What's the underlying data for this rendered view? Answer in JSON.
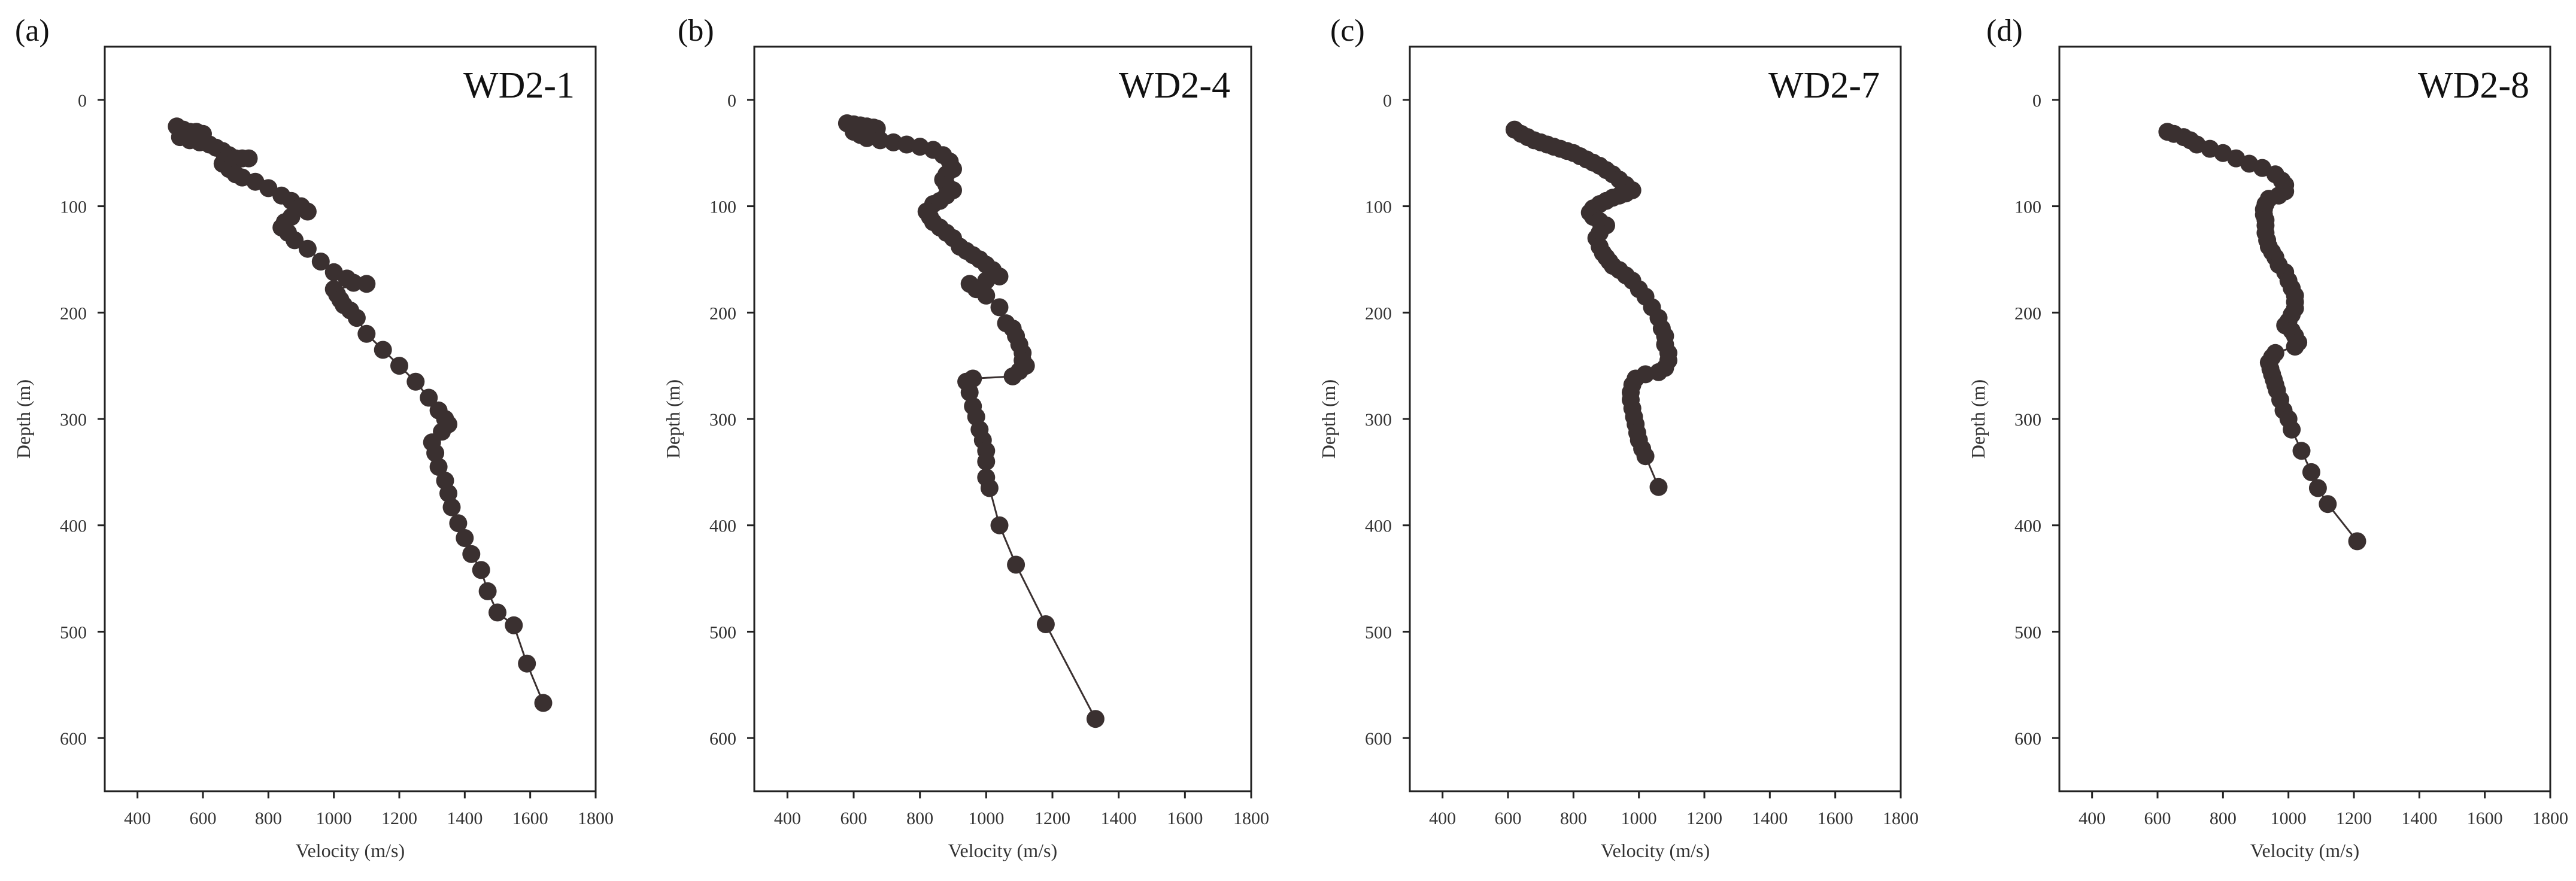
{
  "colors": {
    "marker": "#3a3030",
    "axis": "#222222",
    "text": "#333333"
  },
  "chart_data": [
    {
      "type": "scatter",
      "panel_label": "(a)",
      "title": "WD2-1",
      "xlabel": "Velocity (m/s)",
      "ylabel": "Depth (m)",
      "xlim": [
        300,
        1800
      ],
      "ylim": [
        650,
        -50
      ],
      "y_inverted": true,
      "xticks": [
        "400",
        "600",
        "800",
        "1000",
        "1200",
        "1400",
        "1600",
        "1800"
      ],
      "yticks": [
        "0",
        "100",
        "200",
        "300",
        "400",
        "500",
        "600"
      ],
      "series": [
        {
          "name": "WD2-1",
          "x": [
            520,
            540,
            560,
            580,
            600,
            530,
            560,
            590,
            620,
            640,
            660,
            680,
            700,
            720,
            740,
            660,
            680,
            700,
            720,
            760,
            800,
            840,
            870,
            900,
            920,
            870,
            850,
            840,
            860,
            880,
            920,
            960,
            1000,
            1040,
            1060,
            1100,
            1000,
            1010,
            1020,
            1030,
            1050,
            1070,
            1100,
            1150,
            1200,
            1250,
            1290,
            1320,
            1340,
            1350,
            1330,
            1300,
            1310,
            1320,
            1340,
            1350,
            1360,
            1380,
            1400,
            1420,
            1450,
            1470,
            1500,
            1550,
            1590,
            1640
          ],
          "y": [
            25,
            28,
            30,
            30,
            32,
            35,
            38,
            40,
            42,
            45,
            48,
            52,
            55,
            55,
            55,
            60,
            65,
            70,
            73,
            77,
            83,
            90,
            95,
            100,
            105,
            110,
            115,
            120,
            125,
            132,
            140,
            152,
            162,
            168,
            172,
            173,
            178,
            183,
            188,
            193,
            198,
            205,
            220,
            235,
            250,
            265,
            280,
            292,
            300,
            305,
            312,
            322,
            332,
            345,
            358,
            370,
            383,
            398,
            412,
            427,
            442,
            462,
            482,
            494,
            530,
            567
          ]
        }
      ]
    },
    {
      "type": "scatter",
      "panel_label": "(b)",
      "title": "WD2-4",
      "xlabel": "Velocity (m/s)",
      "ylabel": "Depth (m)",
      "xlim": [
        300,
        1800
      ],
      "ylim": [
        650,
        -50
      ],
      "y_inverted": true,
      "xticks": [
        "400",
        "600",
        "800",
        "1000",
        "1200",
        "1400",
        "1600",
        "1800"
      ],
      "yticks": [
        "0",
        "100",
        "200",
        "300",
        "400",
        "500",
        "600"
      ],
      "series": [
        {
          "name": "WD2-4",
          "x": [
            580,
            600,
            620,
            640,
            660,
            670,
            600,
            620,
            640,
            680,
            720,
            760,
            800,
            840,
            870,
            890,
            900,
            880,
            870,
            880,
            900,
            880,
            860,
            840,
            820,
            830,
            840,
            860,
            880,
            900,
            920,
            940,
            960,
            980,
            1000,
            1020,
            1040,
            1000,
            950,
            970,
            1000,
            1040,
            1060,
            1080,
            1090,
            1100,
            1110,
            1110,
            1120,
            1100,
            1080,
            960,
            940,
            950,
            960,
            970,
            980,
            990,
            1000,
            1000,
            1000,
            1010,
            1040,
            1090,
            1180,
            1330
          ],
          "y": [
            22,
            23,
            24,
            25,
            26,
            27,
            30,
            33,
            36,
            38,
            40,
            42,
            44,
            47,
            52,
            58,
            65,
            70,
            75,
            80,
            85,
            90,
            95,
            98,
            105,
            110,
            115,
            120,
            125,
            130,
            138,
            142,
            146,
            150,
            155,
            160,
            166,
            170,
            173,
            178,
            184,
            195,
            210,
            215,
            222,
            230,
            238,
            245,
            250,
            255,
            260,
            262,
            265,
            275,
            288,
            298,
            310,
            320,
            330,
            340,
            355,
            365,
            400,
            437,
            493,
            582
          ]
        }
      ]
    },
    {
      "type": "scatter",
      "panel_label": "(c)",
      "title": "WD2-7",
      "xlabel": "Velocity (m/s)",
      "ylabel": "Depth (m)",
      "xlim": [
        300,
        1800
      ],
      "ylim": [
        650,
        -50
      ],
      "y_inverted": true,
      "xticks": [
        "400",
        "600",
        "800",
        "1000",
        "1200",
        "1400",
        "1600",
        "1800"
      ],
      "yticks": [
        "0",
        "100",
        "200",
        "300",
        "400",
        "500",
        "600"
      ],
      "series": [
        {
          "name": "WD2-7",
          "x": [
            620,
            640,
            660,
            680,
            700,
            720,
            740,
            760,
            780,
            800,
            820,
            840,
            860,
            880,
            900,
            920,
            940,
            960,
            980,
            960,
            940,
            920,
            900,
            880,
            860,
            850,
            860,
            880,
            900,
            880,
            870,
            880,
            890,
            900,
            910,
            920,
            940,
            960,
            980,
            1000,
            1020,
            1040,
            1060,
            1070,
            1080,
            1080,
            1090,
            1090,
            1080,
            1060,
            1020,
            990,
            980,
            975,
            975,
            980,
            985,
            990,
            995,
            1000,
            1010,
            1020,
            1060
          ],
          "y": [
            28,
            32,
            35,
            38,
            40,
            42,
            44,
            46,
            48,
            50,
            53,
            56,
            59,
            62,
            66,
            70,
            75,
            80,
            85,
            88,
            90,
            92,
            95,
            98,
            102,
            106,
            110,
            114,
            118,
            125,
            130,
            138,
            144,
            148,
            152,
            156,
            160,
            165,
            170,
            178,
            185,
            195,
            205,
            215,
            222,
            230,
            238,
            245,
            252,
            256,
            258,
            262,
            268,
            275,
            282,
            290,
            298,
            305,
            313,
            320,
            328,
            335,
            364
          ]
        }
      ]
    },
    {
      "type": "scatter",
      "panel_label": "(d)",
      "title": "WD2-8",
      "xlabel": "Velocity (m/s)",
      "ylabel": "Depth (m)",
      "xlim": [
        300,
        1800
      ],
      "ylim": [
        650,
        -50
      ],
      "y_inverted": true,
      "xticks": [
        "400",
        "600",
        "800",
        "1000",
        "1200",
        "1400",
        "1600",
        "1800"
      ],
      "yticks": [
        "0",
        "100",
        "200",
        "300",
        "400",
        "500",
        "600"
      ],
      "series": [
        {
          "name": "WD2-8",
          "x": [
            630,
            650,
            680,
            700,
            720,
            760,
            800,
            840,
            880,
            920,
            960,
            980,
            990,
            990,
            970,
            940,
            930,
            925,
            925,
            930,
            930,
            930,
            935,
            940,
            950,
            960,
            970,
            990,
            1000,
            1010,
            1020,
            1020,
            1020,
            1010,
            1000,
            990,
            1010,
            1020,
            1030,
            1020,
            960,
            950,
            940,
            945,
            950,
            955,
            960,
            965,
            975,
            985,
            1000,
            1010,
            1040,
            1070,
            1090,
            1120,
            1210
          ],
          "y": [
            30,
            32,
            35,
            38,
            42,
            46,
            50,
            55,
            60,
            64,
            70,
            76,
            80,
            86,
            90,
            93,
            98,
            103,
            108,
            113,
            118,
            125,
            132,
            138,
            143,
            148,
            155,
            162,
            170,
            177,
            184,
            190,
            196,
            202,
            208,
            212,
            217,
            222,
            228,
            232,
            238,
            242,
            247,
            253,
            258,
            263,
            268,
            273,
            282,
            292,
            300,
            310,
            330,
            350,
            365,
            380,
            415
          ]
        }
      ]
    }
  ]
}
